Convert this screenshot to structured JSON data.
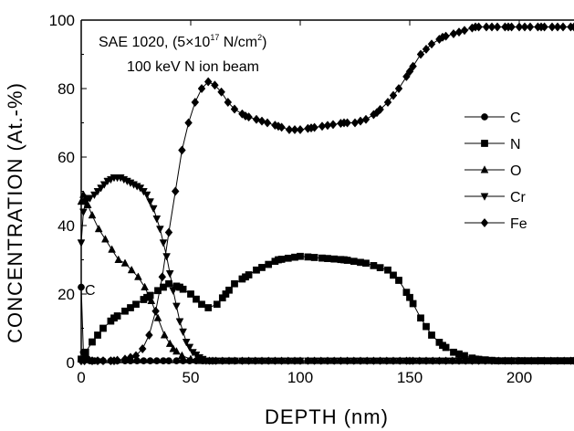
{
  "chart_data": {
    "type": "line",
    "xlabel": "DEPTH (nm)",
    "ylabel": "CONCENTRATION (At.-%)",
    "xlim": [
      0,
      225
    ],
    "ylim": [
      0,
      100
    ],
    "x_ticks": [
      "0",
      "50",
      "100",
      "150",
      "200"
    ],
    "y_ticks": [
      "0",
      "20",
      "40",
      "60",
      "80",
      "100"
    ],
    "grid": false,
    "legend_position": "right",
    "annotations": {
      "line1_part1": "SAE 1020, (5×10",
      "line1_exp": "17",
      "line1_part2": " N/cm",
      "line1_exp2": "2",
      "line1_part3": ")",
      "line2": "100 keV N ion beam",
      "c_marker": "C"
    },
    "series": [
      {
        "name": "C",
        "marker": "circle",
        "x": [
          0,
          1,
          2,
          3,
          4,
          6,
          10,
          20,
          40,
          60,
          100,
          150,
          200,
          225
        ],
        "y": [
          22,
          3,
          1.5,
          1,
          0.5,
          0.5,
          0.5,
          0.5,
          0.5,
          0.5,
          0.5,
          0.5,
          0.5,
          0.5
        ]
      },
      {
        "name": "N",
        "marker": "square",
        "x": [
          0,
          2,
          5,
          10,
          15,
          20,
          25,
          30,
          35,
          40,
          45,
          50,
          55,
          58,
          62,
          66,
          70,
          75,
          80,
          90,
          100,
          110,
          120,
          130,
          140,
          145,
          150,
          155,
          160,
          165,
          170,
          175,
          180,
          190,
          200,
          210,
          225
        ],
        "y": [
          1,
          3,
          6,
          10,
          13,
          15,
          17,
          19,
          21,
          23,
          22,
          20,
          17,
          16,
          17,
          20,
          23,
          25,
          27,
          30,
          31,
          30.5,
          30,
          29,
          27,
          24,
          19,
          13,
          8,
          5,
          3,
          2,
          1,
          0.5,
          0.5,
          0.5,
          0.5
        ]
      },
      {
        "name": "O",
        "marker": "triangle-up",
        "x": [
          0,
          1,
          2,
          3,
          5,
          8,
          11,
          14,
          17,
          20,
          23,
          26,
          29,
          32,
          35,
          38,
          42,
          46,
          50,
          55,
          60,
          70,
          100,
          150,
          225
        ],
        "y": [
          47,
          49,
          48,
          46,
          43,
          39,
          36,
          33,
          30,
          29,
          27,
          25,
          22,
          18,
          13,
          8,
          4,
          2,
          1,
          0.5,
          0.5,
          0.5,
          0.5,
          0.5,
          0.5
        ]
      },
      {
        "name": "Cr",
        "marker": "triangle-down",
        "x": [
          0,
          1,
          2,
          4,
          6,
          9,
          12,
          15,
          18,
          21,
          24,
          27,
          30,
          33,
          36,
          39,
          42,
          45,
          48,
          51,
          54,
          57,
          60,
          70,
          100,
          150,
          225
        ],
        "y": [
          35,
          44,
          47,
          48,
          49,
          51,
          53,
          54,
          54,
          53,
          52,
          51,
          49,
          45,
          39,
          31,
          21,
          12,
          6,
          3,
          1.5,
          0.5,
          0.5,
          0.5,
          0.5,
          0.5,
          0.5
        ]
      },
      {
        "name": "Fe",
        "marker": "diamond",
        "x": [
          0,
          5,
          10,
          15,
          20,
          25,
          28,
          31,
          34,
          37,
          40,
          43,
          46,
          49,
          52,
          55,
          58,
          61,
          64,
          67,
          70,
          75,
          80,
          85,
          90,
          95,
          100,
          105,
          110,
          115,
          120,
          125,
          130,
          135,
          140,
          145,
          150,
          155,
          160,
          165,
          170,
          175,
          180,
          185,
          190,
          195,
          200,
          205,
          210,
          215,
          220,
          225
        ],
        "y": [
          0.5,
          0.5,
          0.5,
          0.5,
          1,
          2,
          4,
          8,
          15,
          25,
          38,
          50,
          62,
          70,
          76,
          80,
          82,
          81,
          79,
          76,
          74,
          72,
          71,
          70,
          69,
          68,
          68,
          68.5,
          69,
          69.5,
          70,
          70,
          71,
          73,
          76,
          80,
          85,
          90,
          93,
          95,
          96,
          97,
          98,
          98,
          98,
          98,
          98,
          98,
          98,
          98,
          98,
          98
        ]
      }
    ]
  }
}
